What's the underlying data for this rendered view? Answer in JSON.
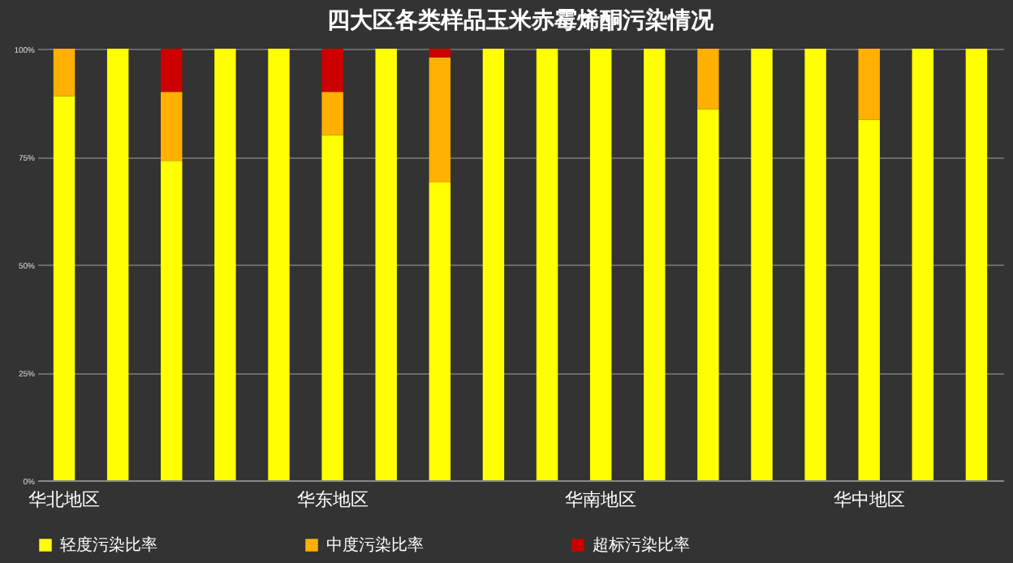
{
  "chart_data": {
    "type": "bar",
    "title": "四大区各类样品玉米赤霉烯酮污染情况",
    "stacked": true,
    "categories": [
      "华北地区",
      null,
      null,
      null,
      null,
      "华东地区",
      null,
      null,
      null,
      null,
      "华南地区",
      null,
      null,
      null,
      null,
      "华中地区",
      null,
      null
    ],
    "series": [
      {
        "name": "轻度污染比率",
        "color": "#ffff00",
        "values": [
          89,
          100,
          74,
          100,
          100,
          80,
          100,
          69,
          100,
          100,
          100,
          100,
          86,
          100,
          100,
          83.5,
          100,
          100
        ]
      },
      {
        "name": "中度污染比率",
        "color": "#ffb000",
        "values": [
          11,
          0,
          16,
          0,
          0,
          10,
          0,
          29,
          0,
          0,
          0,
          0,
          14,
          0,
          0,
          16.5,
          0,
          0
        ]
      },
      {
        "name": "超标污染比率",
        "color": "#cc0000",
        "values": [
          0,
          0,
          10,
          0,
          0,
          10,
          0,
          2,
          0,
          0,
          0,
          0,
          0,
          0,
          0,
          0,
          0,
          0
        ]
      }
    ],
    "ylim": [
      0,
      100
    ],
    "yticks": [
      {
        "value": 0,
        "label": "0%"
      },
      {
        "value": 25,
        "label": "25%"
      },
      {
        "value": 50,
        "label": "50%"
      },
      {
        "value": 75,
        "label": "75%"
      },
      {
        "value": 100,
        "label": "100%"
      }
    ],
    "grid": "y",
    "legend": "bottom"
  }
}
